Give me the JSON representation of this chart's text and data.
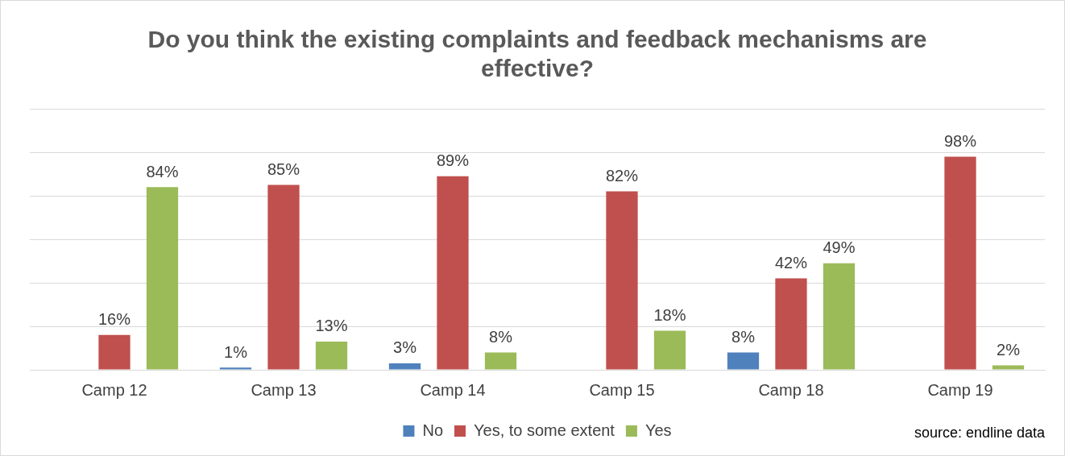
{
  "chart_data": {
    "type": "bar",
    "title": "Do you think the existing complaints and feedback mechanisms are effective?",
    "categories": [
      "Camp 12",
      "Camp 13",
      "Camp 14",
      "Camp 15",
      "Camp 18",
      "Camp 19"
    ],
    "series": [
      {
        "name": "No",
        "color": "#4f81bd",
        "values": [
          null,
          1,
          3,
          null,
          8,
          null
        ],
        "value_labels": [
          null,
          "1%",
          "3%",
          null,
          "8%",
          null
        ]
      },
      {
        "name": "Yes, to some extent",
        "color": "#c0504d",
        "values": [
          16,
          85,
          89,
          82,
          42,
          98
        ],
        "value_labels": [
          "16%",
          "85%",
          "89%",
          "82%",
          "42%",
          "98%"
        ]
      },
      {
        "name": "Yes",
        "color": "#9bbb59",
        "values": [
          84,
          13,
          8,
          18,
          49,
          2
        ],
        "value_labels": [
          "84%",
          "13%",
          "8%",
          "18%",
          "49%",
          "2%"
        ]
      }
    ],
    "ylim": [
      0,
      120
    ],
    "yticks": [
      {
        "value": 0,
        "label": null
      },
      {
        "value": 20,
        "label": null
      },
      {
        "value": 40,
        "label": null
      },
      {
        "value": 60,
        "label": null
      },
      {
        "value": 80,
        "label": null
      },
      {
        "value": 100,
        "label": null
      },
      {
        "value": 120,
        "label": null
      }
    ],
    "tick_labels": "x",
    "grid": "y",
    "legend": "bottom",
    "annotations": [
      "source: endline data"
    ]
  }
}
